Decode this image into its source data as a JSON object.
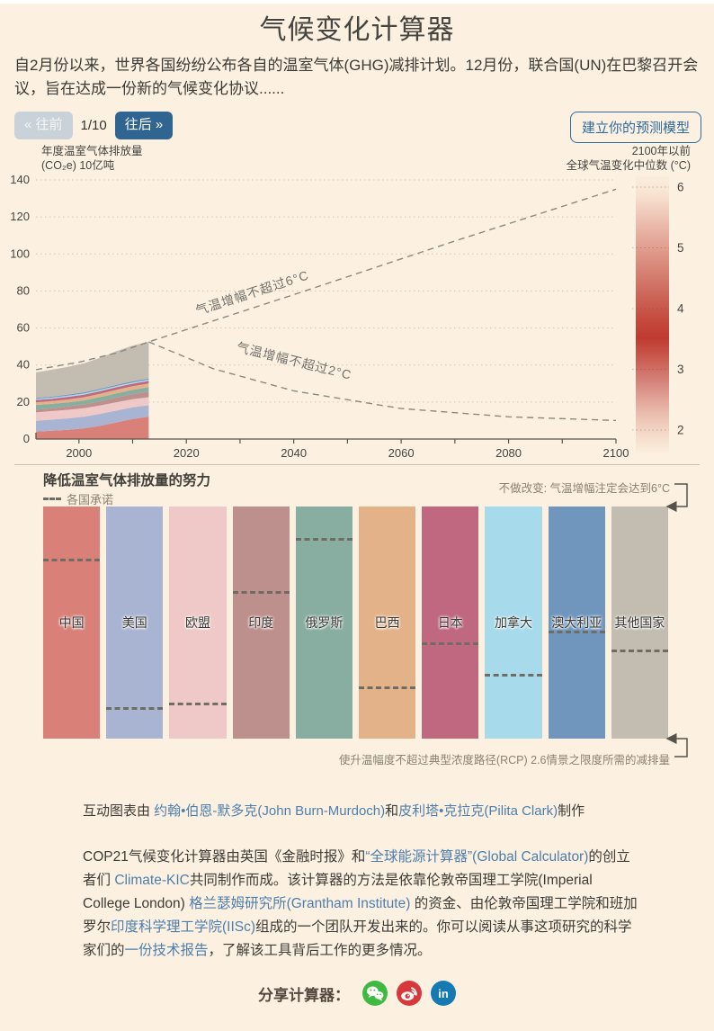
{
  "page": {
    "title": "气候变化计算器",
    "intro": "自2月份以来，世界各国纷纷公布各自的温室气体(GHG)减排计划。12月份，联合国(UN)在巴黎召开会议，旨在达成一份新的气候变化协议......"
  },
  "toolbar": {
    "prev": "« 往前",
    "page_indicator": "1/10",
    "next": "往后 »",
    "build_model": "建立你的预测模型"
  },
  "chart": {
    "y_axis_label_line1": "年度温室气体排放量",
    "y_axis_label_line2": "(CO₂e) 10亿吨",
    "right_label_line1": "2100年以前",
    "right_label_line2": "全球气温变化中位数 (°C)"
  },
  "chart_data": {
    "type": "area",
    "xlim": [
      1992,
      2100
    ],
    "ylim": [
      0,
      140
    ],
    "x_label_ticks": [
      2000,
      2020,
      2040,
      2060,
      2080,
      2100
    ],
    "y_ticks": [
      0,
      20,
      40,
      60,
      80,
      100,
      120,
      140
    ],
    "emissions": {
      "years": [
        1992,
        1995,
        1998,
        2001,
        2004,
        2007,
        2010,
        2013
      ],
      "series": [
        {
          "name": "中国",
          "color": "#d98078",
          "values": [
            4.0,
            4.5,
            5.0,
            5.8,
            7.2,
            9.0,
            10.8,
            12.0
          ]
        },
        {
          "name": "美国",
          "color": "#a9b4d2",
          "values": [
            5.8,
            6.0,
            6.2,
            6.3,
            6.4,
            6.4,
            6.3,
            6.3
          ]
        },
        {
          "name": "欧盟",
          "color": "#eec9c7",
          "values": [
            4.6,
            4.6,
            4.6,
            4.6,
            4.6,
            4.5,
            4.4,
            4.3
          ]
        },
        {
          "name": "印度",
          "color": "#bd8f8d",
          "values": [
            1.4,
            1.6,
            1.8,
            2.0,
            2.2,
            2.5,
            2.8,
            3.0
          ]
        },
        {
          "name": "俄罗斯",
          "color": "#87aea1",
          "values": [
            2.6,
            2.3,
            2.2,
            2.2,
            2.3,
            2.3,
            2.3,
            2.4
          ]
        },
        {
          "name": "巴西",
          "color": "#e3b289",
          "values": [
            1.4,
            1.5,
            1.6,
            1.7,
            1.8,
            1.9,
            2.0,
            2.0
          ]
        },
        {
          "name": "日本",
          "color": "#bf6880",
          "values": [
            1.3,
            1.3,
            1.4,
            1.4,
            1.4,
            1.4,
            1.3,
            1.4
          ]
        },
        {
          "name": "加拿大",
          "color": "#a7dbec",
          "values": [
            0.6,
            0.6,
            0.7,
            0.7,
            0.7,
            0.7,
            0.7,
            0.7
          ]
        },
        {
          "name": "澳大利亚",
          "color": "#7096be",
          "values": [
            0.5,
            0.5,
            0.5,
            0.6,
            0.6,
            0.6,
            0.6,
            0.6
          ]
        },
        {
          "name": "其他国家",
          "color": "#c3bcb1",
          "values": [
            13.8,
            14.6,
            15.0,
            15.7,
            16.8,
            18.2,
            19.3,
            19.8
          ]
        }
      ]
    },
    "scenario_lines": [
      {
        "label": "气温增幅不超过6°C",
        "points": [
          [
            1992,
            37.5
          ],
          [
            2000,
            41.5
          ],
          [
            2007,
            46.5
          ],
          [
            2013,
            52.5
          ],
          [
            2040,
            78
          ],
          [
            2070,
            107
          ],
          [
            2100,
            135
          ]
        ]
      },
      {
        "label": "气温增幅不超过2°C",
        "points": [
          [
            2013,
            52.5
          ],
          [
            2025,
            38
          ],
          [
            2040,
            26
          ],
          [
            2060,
            16.5
          ],
          [
            2080,
            12
          ],
          [
            2100,
            10
          ]
        ]
      }
    ],
    "colorbar": {
      "ticks": [
        2,
        3,
        4,
        5,
        6
      ],
      "stops": [
        [
          0,
          "#fbeedd"
        ],
        [
          0.07,
          "#f7e2d1"
        ],
        [
          0.2,
          "#e8b2a3"
        ],
        [
          0.29,
          "#dd9484"
        ],
        [
          0.42,
          "#cd6a5c"
        ],
        [
          0.52,
          "#c54a3e"
        ],
        [
          0.585,
          "#c03a31"
        ],
        [
          0.66,
          "#ca5c50"
        ],
        [
          0.74,
          "#d5837a"
        ],
        [
          0.85,
          "#e9baab"
        ],
        [
          0.93,
          "#f4dac9"
        ],
        [
          1,
          "#fbeedd"
        ]
      ]
    }
  },
  "pledges": {
    "heading": "降低温室气体排放量的努力",
    "legend": "各国承诺",
    "no_change_note": "不做改变: 气温增幅注定会达到6°C",
    "rcp_note": "使升温幅度不超过典型浓度路径(RCP) 2.6情景之限度所需的减排量",
    "bars": [
      {
        "name": "中国",
        "color": "#d98078",
        "pledge_frac": 0.225
      },
      {
        "name": "美国",
        "color": "#a9b4d2",
        "pledge_frac": 0.865
      },
      {
        "name": "欧盟",
        "color": "#eec9c7",
        "pledge_frac": 0.845
      },
      {
        "name": "印度",
        "color": "#bd8f8d",
        "pledge_frac": 0.365
      },
      {
        "name": "俄罗斯",
        "color": "#87aea1",
        "pledge_frac": 0.135
      },
      {
        "name": "巴西",
        "color": "#e3b289",
        "pledge_frac": 0.775
      },
      {
        "name": "日本",
        "color": "#bf6880",
        "pledge_frac": 0.585
      },
      {
        "name": "加拿大",
        "color": "#a7dbec",
        "pledge_frac": 0.72
      },
      {
        "name": "澳大利亚",
        "color": "#7096be",
        "pledge_frac": 0.535
      },
      {
        "name": "其他国家",
        "color": "#c3bcb1",
        "pledge_frac": 0.615
      }
    ]
  },
  "credits": {
    "segments": [
      {
        "t": "互动图表由 "
      },
      {
        "t": "约翰•伯恩-默多克(John Burn-Murdoch)",
        "link": true
      },
      {
        "t": "和"
      },
      {
        "t": "皮利塔•克拉克(Pilita Clark)",
        "link": true
      },
      {
        "t": "制作"
      }
    ]
  },
  "about": {
    "segments": [
      {
        "t": "COP21气候变化计算器由英国《金融时报》和"
      },
      {
        "t": "“全球能源计算器”(Global Calculator)",
        "link": true
      },
      {
        "t": "的创立者们 "
      },
      {
        "t": "Climate-KIC",
        "link": true
      },
      {
        "t": "共同制作而成。该计算器的方法是依靠伦敦帝国理工学院(Imperial College London) "
      },
      {
        "t": "格兰瑟姆研究所(Grantham Institute)",
        "link": true
      },
      {
        "t": " 的资金、由伦敦帝国理工学院和班加罗尔"
      },
      {
        "t": "印度科学理工学院(IISc)",
        "link": true
      },
      {
        "t": "组成的一个团队开发出来的。你可以阅读从事这项研究的科学家们的"
      },
      {
        "t": "一份技术报告",
        "link": true
      },
      {
        "t": "，了解该工具背后工作的更多情况。"
      }
    ]
  },
  "share": {
    "label": "分享计算器：",
    "icons": [
      {
        "name": "wechat",
        "color": "#3eba40"
      },
      {
        "name": "weibo",
        "color": "#d6383b"
      },
      {
        "name": "linkedin",
        "color": "#1579b2"
      }
    ]
  },
  "colors": {
    "background": "#fcf1e1",
    "link_blue": "#4d7ead",
    "accent_blue": "#2d6a9f"
  }
}
